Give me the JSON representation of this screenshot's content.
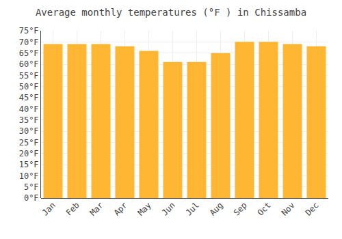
{
  "chart_data": {
    "type": "bar",
    "title": "Average monthly temperatures (°F ) in Chissamba",
    "categories": [
      "Jan",
      "Feb",
      "Mar",
      "Apr",
      "May",
      "Jun",
      "Jul",
      "Aug",
      "Sep",
      "Oct",
      "Nov",
      "Dec"
    ],
    "values": [
      69,
      69,
      69,
      68,
      66,
      61,
      61,
      65,
      70,
      70,
      69,
      68
    ],
    "color": "#FFB733",
    "ylim": [
      0,
      75
    ],
    "yticks": [
      {
        "value": 0,
        "label": "0°F"
      },
      {
        "value": 5,
        "label": "5°F"
      },
      {
        "value": 10,
        "label": "10°F"
      },
      {
        "value": 15,
        "label": "15°F"
      },
      {
        "value": 20,
        "label": "20°F"
      },
      {
        "value": 25,
        "label": "25°F"
      },
      {
        "value": 30,
        "label": "30°F"
      },
      {
        "value": 35,
        "label": "35°F"
      },
      {
        "value": 40,
        "label": "40°F"
      },
      {
        "value": 45,
        "label": "45°F"
      },
      {
        "value": 50,
        "label": "50°F"
      },
      {
        "value": 55,
        "label": "55°F"
      },
      {
        "value": 60,
        "label": "60°F"
      },
      {
        "value": 65,
        "label": "65°F"
      },
      {
        "value": 70,
        "label": "70°F"
      },
      {
        "value": 75,
        "label": "75°F"
      }
    ],
    "grid": true
  }
}
